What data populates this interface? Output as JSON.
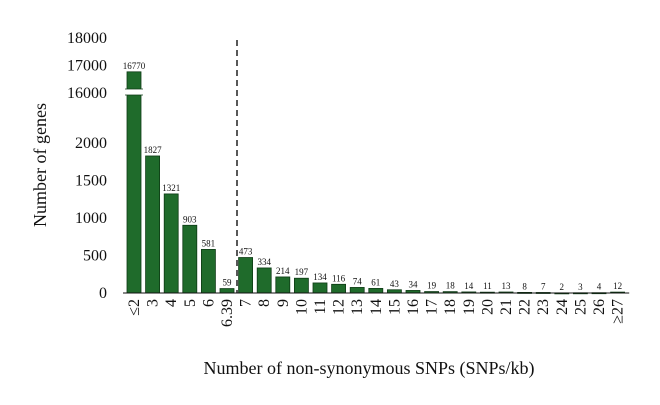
{
  "chart_data": {
    "type": "bar",
    "ylabel": "Number of genes",
    "xlabel": "Number of non-synonymous SNPs (SNPs/kb)",
    "categories": [
      "≤2",
      "3",
      "4",
      "5",
      "6",
      "6.39",
      "7",
      "8",
      "9",
      "10",
      "11",
      "12",
      "13",
      "14",
      "15",
      "16",
      "17",
      "18",
      "19",
      "20",
      "21",
      "22",
      "23",
      "24",
      "25",
      "26",
      "≥27"
    ],
    "values": [
      16770,
      1827,
      1321,
      903,
      581,
      59,
      473,
      334,
      214,
      197,
      134,
      116,
      74,
      61,
      43,
      34,
      19,
      18,
      14,
      11,
      13,
      8,
      7,
      2,
      3,
      4,
      12
    ],
    "data_labels": [
      "16770",
      "1827",
      "1321",
      "903",
      "581",
      "59",
      "473",
      "334",
      "214",
      "197",
      "134",
      "116",
      "74",
      "61",
      "43",
      "34",
      "19",
      "18",
      "14",
      "11",
      "13",
      "8",
      "7",
      "2",
      "3",
      "4",
      "12"
    ],
    "y_ticks_lower": [
      "0",
      "500",
      "1000",
      "1500",
      "2000"
    ],
    "y_ticks_upper": [
      "16000",
      "17000",
      "18000"
    ],
    "ylim_lower": [
      0,
      2250
    ],
    "ylim_upper": [
      16000,
      18000
    ],
    "axis_break": true,
    "reference_line": "6.39",
    "bar_color": "#1f6b2b",
    "bar_edge_color": "#0d3a14"
  }
}
